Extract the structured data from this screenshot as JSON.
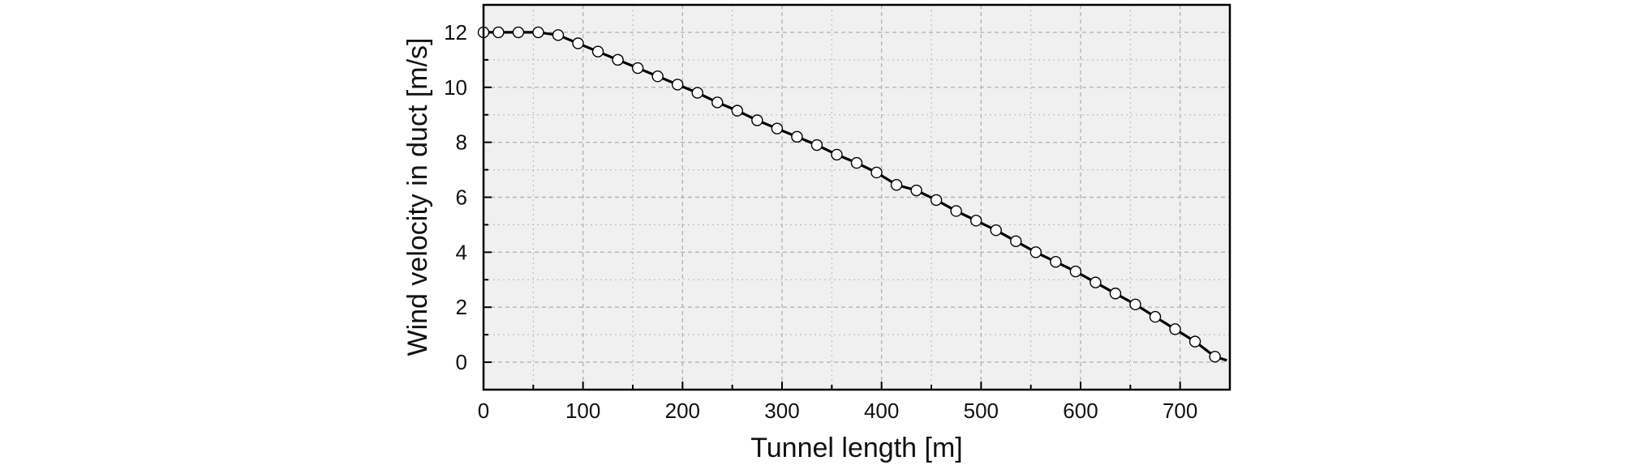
{
  "chart_data": {
    "type": "line",
    "title": "",
    "xlabel": "Tunnel length [m]",
    "ylabel": "Wind velocity in duct [m/s]",
    "xlim": [
      0,
      750
    ],
    "ylim": [
      -1,
      13
    ],
    "xticks": [
      0,
      100,
      200,
      300,
      400,
      500,
      600,
      700
    ],
    "yticks": [
      0,
      2,
      4,
      6,
      8,
      10,
      12
    ],
    "grid": true,
    "colors": {
      "background": "#f0f0f0",
      "line": "#000000",
      "marker_fill": "#ffffff",
      "grid": "#b4b4b4"
    },
    "series": [
      {
        "marker": "open-circle",
        "x": [
          0,
          15,
          35,
          55,
          75,
          95,
          115,
          135,
          155,
          175,
          195,
          215,
          235,
          255,
          275,
          295,
          315,
          335,
          355,
          375,
          395,
          415,
          435,
          455,
          475,
          495,
          515,
          535,
          555,
          575,
          595,
          615,
          635,
          655,
          675,
          695,
          715,
          735
        ],
        "y": [
          12.0,
          12.0,
          12.0,
          12.0,
          11.9,
          11.6,
          11.3,
          11.0,
          10.7,
          10.4,
          10.1,
          9.8,
          9.45,
          9.15,
          8.8,
          8.5,
          8.2,
          7.9,
          7.55,
          7.25,
          6.9,
          6.45,
          6.25,
          5.9,
          5.5,
          5.15,
          4.8,
          4.4,
          4.0,
          3.65,
          3.3,
          2.9,
          2.5,
          2.1,
          1.65,
          1.2,
          0.75,
          0.2
        ]
      }
    ]
  }
}
